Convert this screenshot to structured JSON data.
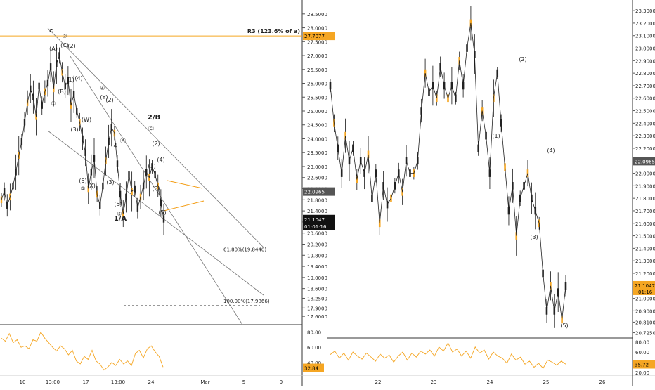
{
  "chart_data": [
    {
      "type": "line",
      "panel": "left",
      "title": "",
      "wave_label_top": "c",
      "resistance_label": "R3 (123.6% of a)",
      "resistance_price": 27.7077,
      "price_tag_mid": "22.0965",
      "price_tag_mid_value": 22.0965,
      "price_tag_last": "21.1047",
      "price_tag_last_value": 21.1047,
      "countdown": "01:01:16",
      "yaxis_ticks": [
        "28.5000",
        "28.0000",
        "27.5000",
        "27.0000",
        "26.5000",
        "26.0000",
        "25.5000",
        "25.0000",
        "24.5000",
        "24.0000",
        "23.5000",
        "23.0000",
        "22.6000",
        "22.2000",
        "21.8000",
        "21.4000",
        "21.0000",
        "20.6000",
        "20.2000",
        "19.8000",
        "19.4000",
        "19.0000",
        "18.6000",
        "18.2500",
        "17.9000",
        "17.6000"
      ],
      "ylim": [
        17.35,
        28.85
      ],
      "xaxis_ticks": [
        "10",
        "13:00",
        "17",
        "13:00",
        "24",
        "Mar",
        "5",
        "9"
      ],
      "fib_levels": [
        {
          "label": "61.80%(19.8440)",
          "value": 19.844
        },
        {
          "label": "100.00%(17.9866)",
          "value": 17.9866
        }
      ],
      "wave_labels": [
        "②",
        "(A)",
        "(C)",
        "(2)",
        "(B)",
        "①",
        "(1)",
        "(4)",
        "(3)",
        "(W)",
        "④",
        "(Y)",
        "(2)",
        "Ⓐ",
        "4",
        "(5)",
        "③",
        "(X)",
        "(3)",
        "(5)",
        "⑤",
        "1/A",
        "2/B",
        "Ⓒ",
        "(2)",
        "(4)",
        "(1)",
        "(3)",
        "(5)"
      ],
      "oscillator": {
        "ticks": [
          "80.00",
          "60.00",
          "40.00"
        ],
        "ylim": [
          25,
          88
        ],
        "last": "32.84",
        "last_value": 32.84
      },
      "series": [
        {
          "values": [
            21.8,
            22.1,
            21.6,
            21.9,
            22.3,
            22.8,
            23.4,
            23.9,
            24.6,
            25.3,
            25.8,
            25.5,
            24.8,
            25.9,
            25.2,
            25.7,
            26.0,
            26.6,
            25.8,
            26.7,
            27.0,
            26.4,
            25.9,
            26.1,
            25.2,
            25.6,
            25.0,
            24.6,
            24.0,
            23.5,
            22.2,
            22.8,
            23.3,
            22.0,
            21.6,
            22.3,
            23.2,
            23.9,
            24.4,
            24.2,
            23.1,
            22.0,
            21.3,
            21.9,
            22.7,
            22.1,
            22.2,
            21.5,
            21.9,
            22.3,
            22.8,
            22.6,
            23.0,
            22.7,
            22.3,
            21.7,
            21.1
          ]
        }
      ]
    },
    {
      "type": "line",
      "panel": "right",
      "title": "",
      "price_tag_mid": "22.0965",
      "price_tag_mid_value": 22.0965,
      "price_tag_last": "21.1047",
      "price_tag_last_value": 21.1047,
      "countdown": "01:16",
      "yaxis_ticks": [
        "23.3000",
        "23.2000",
        "23.1000",
        "23.0000",
        "22.9000",
        "22.8000",
        "22.7000",
        "22.6000",
        "22.5000",
        "22.4000",
        "22.3000",
        "22.2000",
        "22.1000",
        "22.0000",
        "21.9000",
        "21.8000",
        "21.7000",
        "21.6000",
        "21.5000",
        "21.4000",
        "21.3000",
        "21.2000",
        "21.1000",
        "21.0000",
        "20.9000",
        "20.8100",
        "20.7250"
      ],
      "ylim": [
        20.7,
        23.34
      ],
      "xaxis_ticks": [
        "22",
        "23",
        "24",
        "25",
        "26"
      ],
      "wave_labels": [
        "(1)",
        "(2)",
        "(3)",
        "(4)",
        "(5)"
      ],
      "oscillator": {
        "ticks": [
          "80.00",
          "60.00",
          "40.00",
          "20.00"
        ],
        "ylim": [
          17,
          85
        ],
        "last": "35.72",
        "last_value": 35.72
      },
      "series": [
        {
          "values": [
            22.7,
            22.4,
            22.2,
            22.0,
            22.3,
            22.1,
            22.2,
            21.95,
            22.1,
            22.0,
            22.15,
            21.8,
            22.0,
            21.6,
            21.9,
            21.75,
            21.8,
            21.9,
            22.0,
            21.85,
            22.1,
            22.0,
            22.0,
            22.1,
            22.5,
            22.8,
            22.65,
            22.7,
            22.6,
            22.85,
            22.7,
            22.6,
            22.7,
            22.6,
            22.9,
            22.7,
            23.0,
            23.2,
            22.95,
            22.2,
            22.5,
            22.3,
            22.0,
            22.6,
            22.8,
            22.4,
            22.05,
            21.7,
            21.9,
            21.5,
            21.8,
            21.9,
            22.0,
            21.8,
            21.7,
            21.6,
            21.2,
            20.9,
            21.1,
            20.9,
            21.05,
            20.83,
            21.1
          ]
        }
      ]
    }
  ]
}
